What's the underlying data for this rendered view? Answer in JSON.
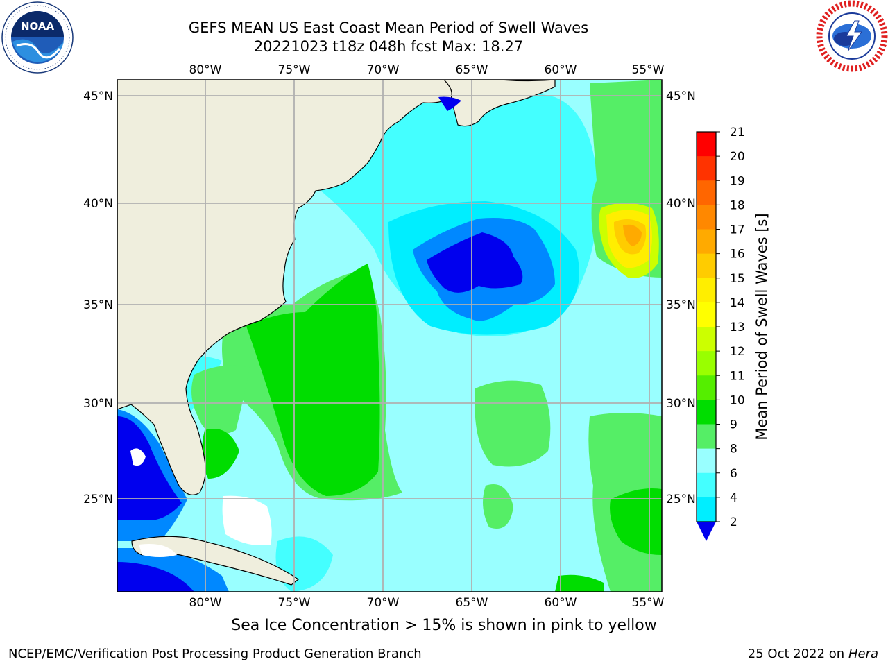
{
  "header": {
    "title_line1": "GEFS MEAN US East Coast Mean Period of Swell Waves",
    "title_line2": "20221023 t18z 048h fcst   Max: 18.27"
  },
  "logos": {
    "left": {
      "icon": "noaa-logo-icon",
      "text": "NOAA"
    },
    "right": {
      "icon": "nws-logo-icon"
    }
  },
  "map": {
    "lon_ticks": [
      "80°W",
      "75°W",
      "70°W",
      "65°W",
      "60°W",
      "55°W"
    ],
    "lat_ticks": [
      "45°N",
      "40°N",
      "35°N",
      "30°N",
      "25°N"
    ],
    "land_color": "#efeedd",
    "grid_color": "#b0b0b0"
  },
  "colorbar": {
    "label": "Mean Period of Swell Waves [s]",
    "ticks": [
      "21",
      "20",
      "19",
      "18",
      "17",
      "16",
      "15",
      "14",
      "13",
      "12",
      "11",
      "10",
      "9",
      "8",
      "6",
      "4",
      "2"
    ],
    "colors": [
      "#ff0000",
      "#ff3300",
      "#ff6600",
      "#ff8800",
      "#ffaa00",
      "#ffcc00",
      "#ffee00",
      "#ffff00",
      "#ccff00",
      "#99ff00",
      "#55ee00",
      "#00dd00",
      "#55ee66",
      "#99ffff",
      "#44ffff",
      "#00eeff",
      "#00bbff",
      "#0066ff"
    ],
    "under_color": "#0000ee"
  },
  "footer": {
    "note": "Sea Ice Concentration > 15% is shown in pink to yellow",
    "credit": "NCEP/EMC/Verification Post Processing Product Generation Branch",
    "date_prefix": "25 Oct 2022 on ",
    "date_host": "Hera"
  }
}
